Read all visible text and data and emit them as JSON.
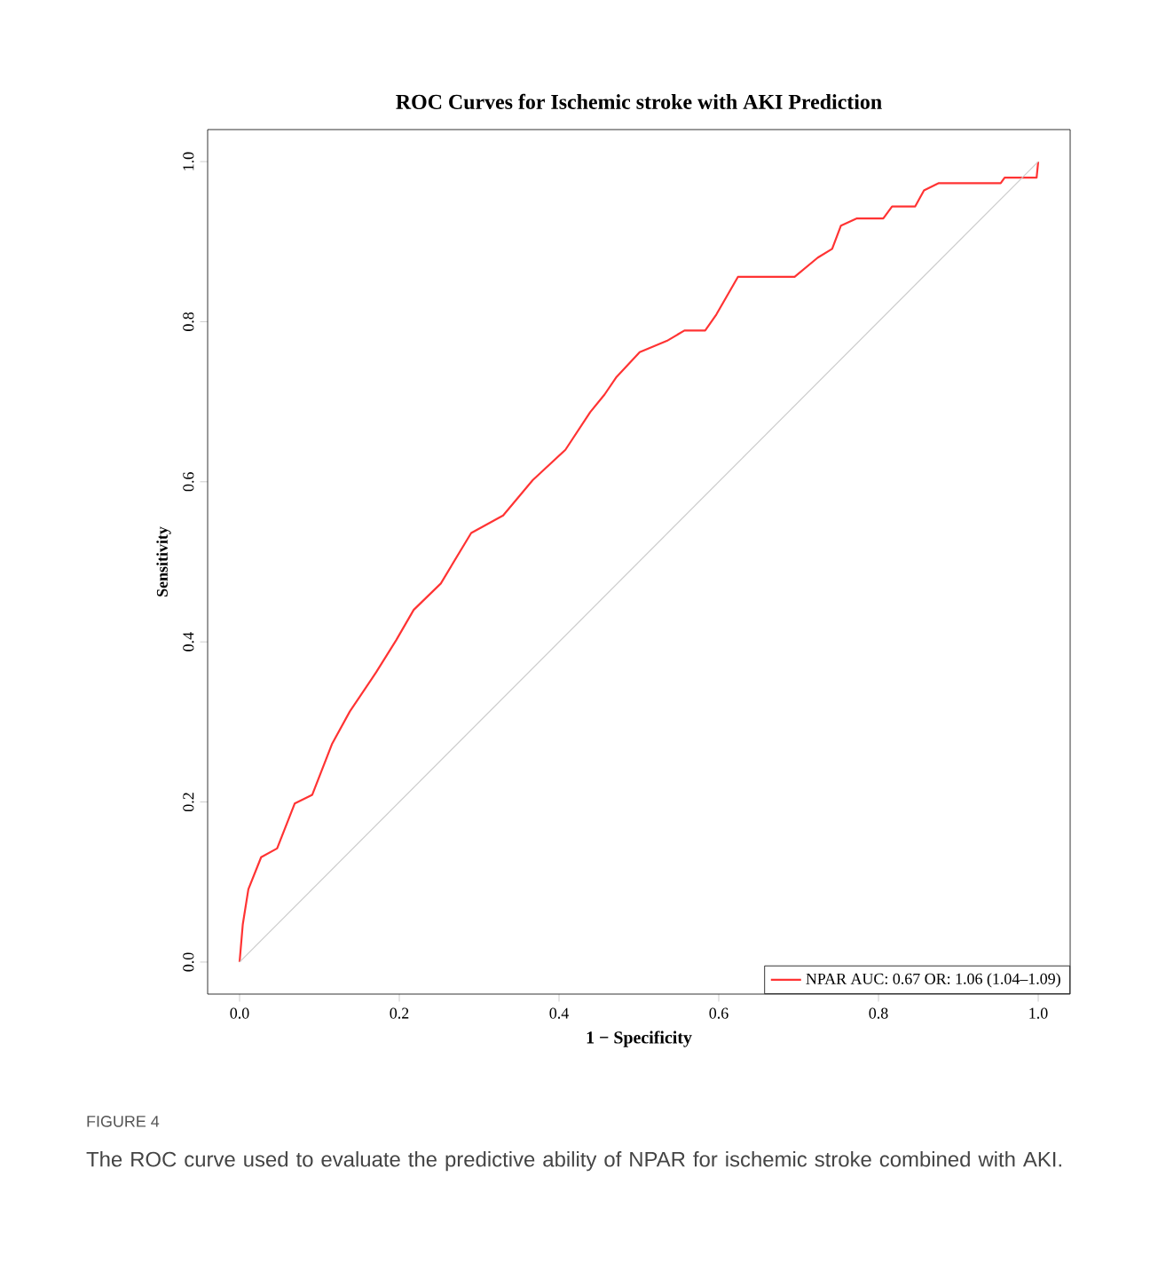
{
  "chart_data": {
    "type": "line",
    "title": "ROC Curves for Ischemic stroke with AKI Prediction",
    "xlabel": "1 − Specificity",
    "ylabel": "Sensitivity",
    "xlim": [
      -0.04,
      1.04
    ],
    "ylim": [
      -0.04,
      1.04
    ],
    "xticks": [
      {
        "value": 0,
        "label": "0.0"
      },
      {
        "value": 0.2,
        "label": "0.2"
      },
      {
        "value": 0.4,
        "label": "0.4"
      },
      {
        "value": 0.6,
        "label": "0.6"
      },
      {
        "value": 0.8,
        "label": "0.8"
      },
      {
        "value": 1,
        "label": "1.0"
      }
    ],
    "yticks": [
      {
        "value": 0,
        "label": "0.0"
      },
      {
        "value": 0.2,
        "label": "0.2"
      },
      {
        "value": 0.4,
        "label": "0.4"
      },
      {
        "value": 0.6,
        "label": "0.6"
      },
      {
        "value": 0.8,
        "label": "0.8"
      },
      {
        "value": 1,
        "label": "1.0"
      }
    ],
    "grid": false,
    "legend": "bottom right",
    "marker": "none",
    "line_style": "solid",
    "series": [
      {
        "name": "NPAR AUC: 0.67 OR: 1.06 (1.04–1.09)",
        "color": "#ff3333",
        "x": [
          0,
          0.004,
          0.011,
          0.027,
          0.047,
          0.069,
          0.091,
          0.116,
          0.138,
          0.171,
          0.196,
          0.218,
          0.252,
          0.29,
          0.33,
          0.367,
          0.408,
          0.439,
          0.457,
          0.472,
          0.501,
          0.535,
          0.557,
          0.583,
          0.597,
          0.624,
          0.695,
          0.724,
          0.742,
          0.753,
          0.773,
          0.806,
          0.817,
          0.846,
          0.857,
          0.875,
          0.953,
          0.958,
          0.998,
          1
        ],
        "values": [
          0,
          0.047,
          0.091,
          0.131,
          0.142,
          0.198,
          0.209,
          0.273,
          0.313,
          0.362,
          0.402,
          0.44,
          0.473,
          0.536,
          0.558,
          0.602,
          0.64,
          0.687,
          0.709,
          0.731,
          0.762,
          0.776,
          0.789,
          0.789,
          0.809,
          0.856,
          0.856,
          0.88,
          0.891,
          0.92,
          0.929,
          0.929,
          0.944,
          0.944,
          0.964,
          0.973,
          0.973,
          0.98,
          0.98,
          1
        ]
      },
      {
        "color": "#cccccc",
        "x": [
          0,
          1
        ],
        "values": [
          0,
          1
        ]
      }
    ],
    "annotations": [
      "FIGURE 4",
      "The ROC curve used to evaluate the predictive ability of NPAR for ischemic stroke combined with AKI."
    ]
  }
}
